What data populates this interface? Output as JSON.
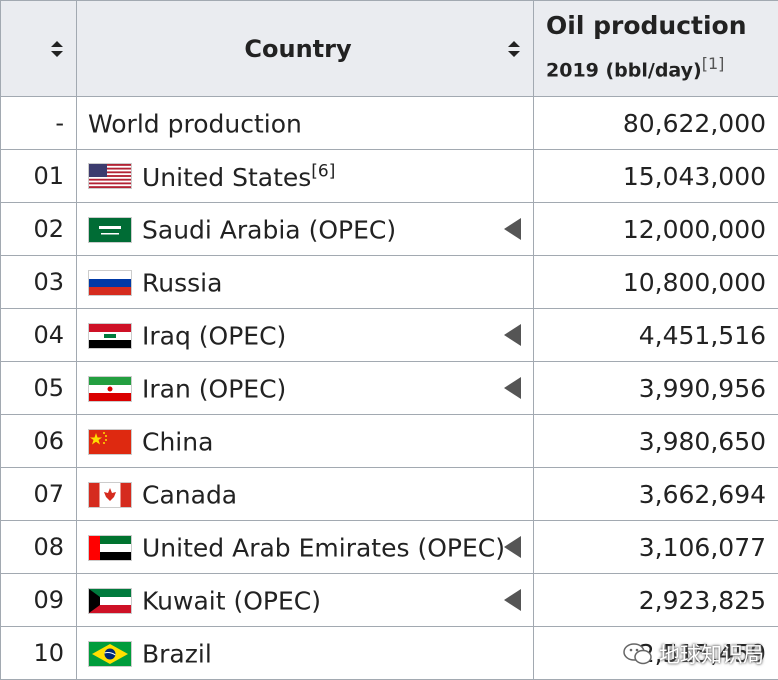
{
  "header": {
    "country_label": "Country",
    "oil_line1": "Oil production",
    "oil_line2": "2019 (bbl/day)",
    "oil_ref": "[1]"
  },
  "rows": [
    {
      "rank": "-",
      "name": "World production",
      "ref": "",
      "value": "80,622,000",
      "flag": "",
      "opec": false
    },
    {
      "rank": "01",
      "name": "United States",
      "ref": "[6]",
      "value": "15,043,000",
      "flag": "us-flag-icon",
      "opec": false
    },
    {
      "rank": "02",
      "name": "Saudi Arabia (OPEC)",
      "ref": "",
      "value": "12,000,000",
      "flag": "saudi-flag-icon",
      "opec": true
    },
    {
      "rank": "03",
      "name": "Russia",
      "ref": "",
      "value": "10,800,000",
      "flag": "russia-flag-icon",
      "opec": false
    },
    {
      "rank": "04",
      "name": "Iraq (OPEC)",
      "ref": "",
      "value": "4,451,516",
      "flag": "iraq-flag-icon",
      "opec": true
    },
    {
      "rank": "05",
      "name": "Iran (OPEC)",
      "ref": "",
      "value": "3,990,956",
      "flag": "iran-flag-icon",
      "opec": true
    },
    {
      "rank": "06",
      "name": "China",
      "ref": "",
      "value": "3,980,650",
      "flag": "china-flag-icon",
      "opec": false
    },
    {
      "rank": "07",
      "name": "Canada",
      "ref": "",
      "value": "3,662,694",
      "flag": "canada-flag-icon",
      "opec": false
    },
    {
      "rank": "08",
      "name": "United Arab Emirates (OPEC)",
      "ref": "",
      "value": "3,106,077",
      "flag": "uae-flag-icon",
      "opec": true
    },
    {
      "rank": "09",
      "name": "Kuwait (OPEC)",
      "ref": "",
      "value": "2,923,825",
      "flag": "kuwait-flag-icon",
      "opec": true
    },
    {
      "rank": "10",
      "name": "Brazil",
      "ref": "",
      "value": "2,515,459",
      "flag": "brazil-flag-icon",
      "opec": false
    }
  ],
  "watermark": "地球知识局",
  "colors": {
    "header_bg": "#eaecf0",
    "border": "#a2a9b1",
    "marker": "#555555"
  }
}
